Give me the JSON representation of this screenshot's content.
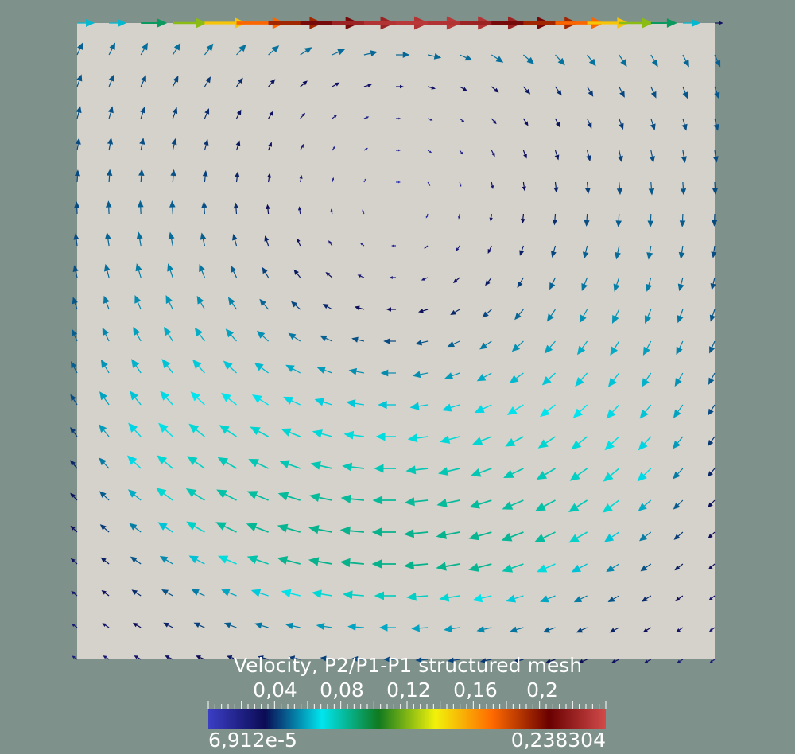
{
  "scene": {
    "background_color": "#7f918b",
    "domain_color": "#d5d2cb",
    "glyph": "arrow",
    "grid_columns": 21,
    "grid_rows": 21,
    "field_description": "lid-driven cavity flow, clockwise primary vortex"
  },
  "legend": {
    "title": "Velocity, P2/P1-P1 structured mesh",
    "tick_labels": [
      "0,04",
      "0,08",
      "0,12",
      "0,16",
      "0,2"
    ],
    "tick_values": [
      0.04,
      0.08,
      0.12,
      0.16,
      0.2
    ],
    "range_min_label": "6,912e-5",
    "range_max_label": "0,238304",
    "range_min": 6.912e-05,
    "range_max": 0.238304,
    "colormap": [
      "#3b3ec4",
      "#0b0b55",
      "#00e5ee",
      "#0f7a1f",
      "#f2f20a",
      "#ff6a00",
      "#6a0000",
      "#d24a4a"
    ]
  }
}
